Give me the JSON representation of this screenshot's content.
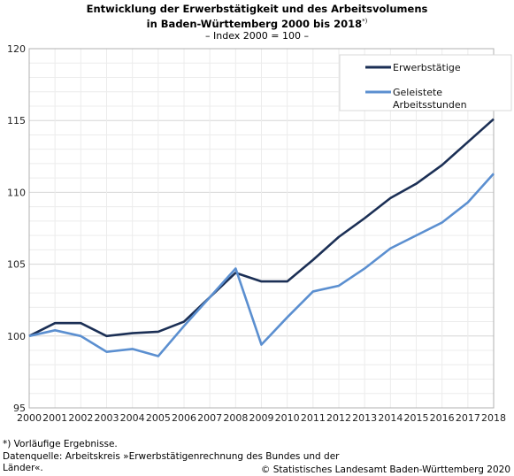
{
  "chart_data": {
    "type": "line",
    "title_line1": "Entwicklung der Erwerbstätigkeit und des Arbeitsvolumens",
    "title_line2": "in Baden-Württemberg 2000 bis 2018",
    "title_sup": "*)",
    "subtitle": "– Index 2000 = 100 –",
    "x": [
      2000,
      2001,
      2002,
      2003,
      2004,
      2005,
      2006,
      2007,
      2008,
      2009,
      2010,
      2011,
      2012,
      2013,
      2014,
      2015,
      2016,
      2017,
      2018
    ],
    "ylim": [
      95,
      120
    ],
    "yticks": [
      95,
      100,
      105,
      110,
      115,
      120
    ],
    "grid": true,
    "legend_position": "top-right",
    "series": [
      {
        "name": "Erwerbstätige",
        "color": "#1b2f55",
        "values": [
          100.0,
          100.9,
          100.9,
          100.0,
          100.2,
          100.3,
          101.0,
          102.7,
          104.4,
          103.8,
          103.8,
          105.3,
          106.9,
          108.2,
          109.6,
          110.6,
          111.9,
          113.5,
          115.1
        ]
      },
      {
        "name_line1": "Geleistete",
        "name_line2": "Arbeitsstunden",
        "color": "#5b8fd0",
        "values": [
          100.0,
          100.4,
          100.0,
          98.9,
          99.1,
          98.6,
          100.7,
          102.7,
          104.7,
          99.4,
          101.3,
          103.1,
          103.5,
          104.7,
          106.1,
          107.0,
          107.9,
          109.3,
          111.3
        ]
      }
    ]
  },
  "footer": {
    "note": "*) Vorläufige Ergebnisse.",
    "source_line1": "Datenquelle: Arbeitskreis »Erwerbstätigenrechnung des Bundes und der",
    "source_line2": "Länder«.",
    "copyright": "© Statistisches Landesamt Baden-Württemberg 2020"
  }
}
